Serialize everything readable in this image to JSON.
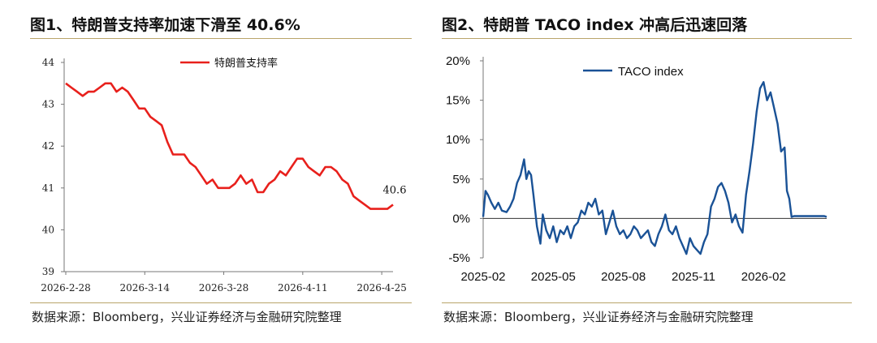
{
  "chart_data": [
    {
      "type": "line",
      "title": "图1、特朗普支持率加速下滑至 40.6%",
      "xlabel": "",
      "ylabel": "",
      "ylim": [
        39,
        44
      ],
      "yticks": [
        "39",
        "40",
        "41",
        "42",
        "43",
        "44"
      ],
      "xtick_labels": [
        "2026-2-28",
        "2026-3-14",
        "2026-3-28",
        "2026-4-11",
        "2026-4-25"
      ],
      "x_start": "2026-02-28",
      "legend_position": "top-center",
      "annotation": "40.6",
      "line_color": "#e8201c",
      "series": [
        {
          "name": "特朗普支持率",
          "values": [
            43.5,
            43.4,
            43.3,
            43.2,
            43.3,
            43.3,
            43.4,
            43.5,
            43.5,
            43.3,
            43.4,
            43.3,
            43.1,
            42.9,
            42.9,
            42.7,
            42.6,
            42.5,
            42.1,
            41.8,
            41.8,
            41.8,
            41.6,
            41.5,
            41.3,
            41.1,
            41.2,
            41.0,
            41.0,
            41.0,
            41.1,
            41.3,
            41.1,
            41.2,
            40.9,
            40.9,
            41.1,
            41.2,
            41.4,
            41.3,
            41.5,
            41.7,
            41.7,
            41.5,
            41.4,
            41.3,
            41.5,
            41.5,
            41.4,
            41.2,
            41.1,
            40.8,
            40.7,
            40.6,
            40.5,
            40.5,
            40.5,
            40.5,
            40.6
          ]
        }
      ],
      "source": "数据来源：Bloomberg，兴业证券经济与金融研究院整理"
    },
    {
      "type": "line",
      "title": "图2、特朗普 TACO index 冲高后迅速回落",
      "xlabel": "",
      "ylabel": "",
      "ylim": [
        -5,
        20
      ],
      "yticks": [
        "-5%",
        "0%",
        "5%",
        "10%",
        "15%",
        "20%"
      ],
      "xtick_labels": [
        "2025-02",
        "2025-05",
        "2025-08",
        "2025-11",
        "2026-02"
      ],
      "legend_position": "top-left",
      "line_color": "#1a5296",
      "series": [
        {
          "name": "TACO index",
          "x_month": [
            0.0,
            0.1,
            0.2,
            0.35,
            0.5,
            0.65,
            0.8,
            1.0,
            1.15,
            1.3,
            1.45,
            1.6,
            1.75,
            1.85,
            1.95,
            2.05,
            2.15,
            2.3,
            2.45,
            2.55,
            2.7,
            2.85,
            3.0,
            3.15,
            3.3,
            3.45,
            3.6,
            3.75,
            3.9,
            4.05,
            4.2,
            4.35,
            4.5,
            4.65,
            4.8,
            4.95,
            5.1,
            5.25,
            5.4,
            5.55,
            5.7,
            5.85,
            6.0,
            6.15,
            6.3,
            6.45,
            6.6,
            6.75,
            6.9,
            7.05,
            7.2,
            7.35,
            7.5,
            7.65,
            7.8,
            7.95,
            8.1,
            8.25,
            8.4,
            8.55,
            8.7,
            8.85,
            9.0,
            9.15,
            9.3,
            9.45,
            9.6,
            9.75,
            9.9,
            10.05,
            10.2,
            10.35,
            10.5,
            10.65,
            10.8,
            10.95,
            11.1,
            11.25,
            11.4,
            11.55,
            11.7,
            11.85,
            12.0,
            12.15,
            12.3,
            12.45,
            12.6,
            12.75,
            12.9,
            13.0,
            13.1,
            13.2,
            13.3,
            13.4,
            13.5,
            13.6,
            13.7,
            13.8,
            13.9,
            14.0,
            14.1,
            14.2,
            14.3,
            14.4,
            14.5,
            14.6,
            14.7
          ],
          "values": [
            0.2,
            3.5,
            3.0,
            2.0,
            1.2,
            2.0,
            1.0,
            0.8,
            1.5,
            2.5,
            4.5,
            5.5,
            7.5,
            5.0,
            6.0,
            5.5,
            3.0,
            -1.0,
            -3.2,
            0.5,
            -1.5,
            -2.5,
            -1.0,
            -3.0,
            -1.5,
            -2.0,
            -1.0,
            -2.5,
            -1.0,
            -0.5,
            1.0,
            0.5,
            2.0,
            1.5,
            2.5,
            0.5,
            1.0,
            -2.0,
            -0.5,
            1.0,
            -1.0,
            -2.0,
            -1.5,
            -2.5,
            -2.0,
            -1.0,
            -1.5,
            -2.5,
            -2.0,
            -1.5,
            -3.0,
            -3.5,
            -2.0,
            -1.0,
            0.5,
            -1.5,
            -2.0,
            -1.0,
            -2.5,
            -3.5,
            -4.5,
            -2.5,
            -3.5,
            -4.0,
            -4.5,
            -3.0,
            -2.0,
            1.5,
            2.5,
            4.0,
            4.5,
            3.5,
            2.0,
            -0.5,
            0.5,
            -1.0,
            -1.8,
            3.0,
            6.0,
            9.5,
            13.5,
            16.5,
            17.3,
            15.0,
            16.0,
            14.0,
            12.0,
            8.5,
            9.0,
            3.5,
            2.5,
            0.2,
            0.3,
            0.3,
            0.3,
            0.3,
            0.3,
            0.3,
            0.3,
            0.3,
            0.3,
            0.3,
            0.3,
            0.3,
            0.3,
            0.3,
            0.2
          ],
          "x_domain": [
            0,
            14.7
          ]
        }
      ],
      "source": "数据来源：Bloomberg，兴业证券经济与金融研究院整理"
    }
  ]
}
